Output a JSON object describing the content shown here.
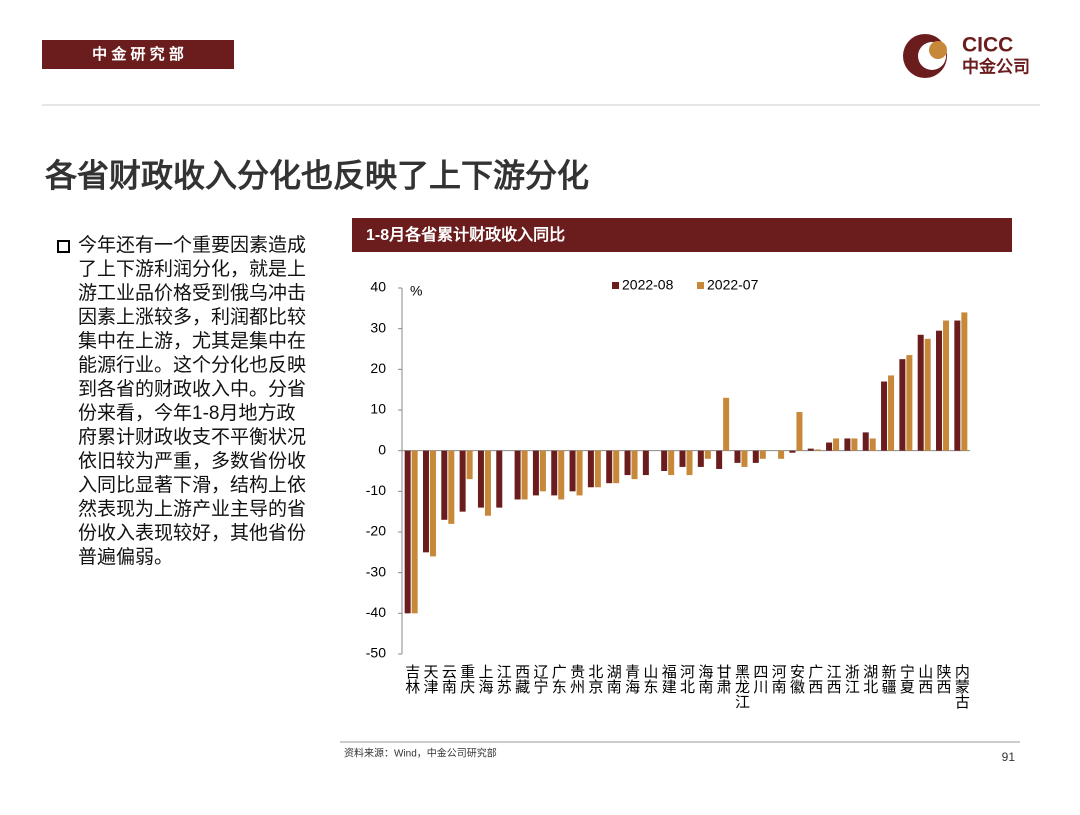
{
  "header": {
    "label": "中 金 研 究 部",
    "logo_en": "CICC",
    "logo_cn": "中金公司"
  },
  "title": "各省财政收入分化也反映了上下游分化",
  "bullet": "今年还有一个重要因素造成了上下游利润分化，就是上游工业品价格受到俄乌冲击因素上涨较多，利润都比较集中在上游，尤其是集中在能源行业。这个分化也反映到各省的财政收入中。分省份来看，今年1-8月地方政府累计财政收支不平衡状况依旧较为严重，多数省份收入同比显著下滑，结构上依然表现为上游产业主导的省份收入表现较好，其他省份普遍偏弱。",
  "chart_data": {
    "type": "bar",
    "title": "1-8月各省累计财政收入同比",
    "y_unit": "%",
    "categories": [
      "吉林",
      "天津",
      "云南",
      "重庆",
      "上海",
      "江苏",
      "西藏",
      "辽宁",
      "广东",
      "贵州",
      "北京",
      "湖南",
      "青海",
      "山东",
      "福建",
      "河北",
      "海南",
      "甘肃",
      "黑龙江",
      "四川",
      "河南",
      "安徽",
      "广西",
      "江西",
      "浙江",
      "湖北",
      "新疆",
      "宁夏",
      "山西",
      "陕西",
      "内蒙古"
    ],
    "series": [
      {
        "name": "2022-08",
        "color": "#6b1d1d",
        "values": [
          -40,
          -25,
          -17,
          -15,
          -14,
          -14,
          -12,
          -11,
          -11,
          -10,
          -9,
          -8,
          -6,
          -6,
          -5,
          -4,
          -4,
          -4.5,
          -3,
          -3,
          0,
          -0.5,
          0.5,
          2,
          3,
          4.5,
          17,
          22.5,
          28.5,
          29.5,
          32
        ]
      },
      {
        "name": "2022-07",
        "color": "#c8883a",
        "values": [
          -40,
          -26,
          -18,
          -7,
          -16,
          null,
          -12,
          -10,
          -12,
          -11,
          -9,
          -8,
          -7,
          null,
          -6,
          -6,
          -2,
          13,
          -4,
          -2,
          -2,
          9.5,
          0.3,
          3,
          3,
          3,
          18.5,
          23.5,
          27.5,
          32,
          34
        ]
      }
    ],
    "ylim": [
      -50,
      40
    ],
    "yticks": [
      -50,
      -40,
      -30,
      -20,
      -10,
      0,
      10,
      20,
      30,
      40
    ]
  },
  "footer": {
    "source": "资料来源：Wind，中金公司研究部",
    "page": "91"
  }
}
